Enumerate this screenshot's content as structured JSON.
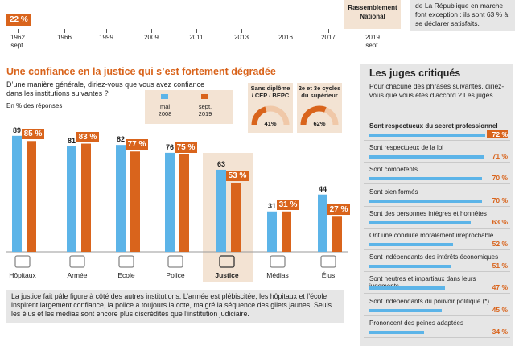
{
  "timeline": {
    "years": [
      "1962\nsept.",
      "1966",
      "1999",
      "2009",
      "2011",
      "2013",
      "2016",
      "2017",
      "2019\nsept."
    ],
    "first_value": "22 %",
    "rn_label": "Rassemblement\nNational",
    "note": "de La République en marche font exception : ils sont 63 % à se déclarer satisfaits."
  },
  "main": {
    "title": "Une confiance en la justice qui s’est fortement dégradée",
    "question": "D’une manière générale, diriez-vous que vous avez confiance dans les institutions suivantes ?",
    "unit_label": "En % des réponses",
    "legend": [
      {
        "label": "mai\n2008",
        "color": "#5cb4e8"
      },
      {
        "label": "sept.\n2019",
        "color": "#d9641c"
      }
    ],
    "gauges": [
      {
        "title": "Sans diplôme\n/ CEP / BEPC",
        "value": "41%",
        "pct": 41
      },
      {
        "title": "2e et 3e cycles\ndu supérieur",
        "value": "62%",
        "pct": 62
      }
    ],
    "note": "La justice fait pâle figure à côté des autres institutions. L’armée est plébiscitée, les hôpitaux et l’école inspirent largement confiance, la police a toujours la cote, malgré la séquence des gilets jaunes. Seuls les élus et les médias sont encore plus discrédités que l’institution judiciaire."
  },
  "chart_data": [
    {
      "type": "bar",
      "title": "Une confiance en la justice qui s’est fortement dégradée",
      "categories": [
        "Hôpitaux",
        "Armée",
        "Ecole",
        "Police",
        "Justice",
        "Médias",
        "Élus"
      ],
      "series": [
        {
          "name": "mai 2008",
          "values": [
            89,
            81,
            82,
            76,
            63,
            31,
            44
          ],
          "labels": [
            "89",
            "81",
            "82",
            "76",
            "63",
            "31",
            "44"
          ],
          "color": "#5cb4e8"
        },
        {
          "name": "sept. 2019",
          "values": [
            85,
            83,
            77,
            75,
            53,
            31,
            27
          ],
          "labels": [
            "85 %",
            "83 %",
            "77 %",
            "75 %",
            "53 %",
            "31 %",
            "27 %"
          ],
          "color": "#d9641c"
        }
      ],
      "ylim": [
        0,
        100
      ],
      "highlight": "Justice"
    },
    {
      "type": "bar",
      "title": "Les juges critiqués",
      "question": "Pour chacune des phrases suivantes, diriez-vous que vous êtes d’accord ? Les juges...",
      "categories": [
        "Sont respectueux du secret professionnel",
        "Sont respectueux de la loi",
        "Sont compétents",
        "Sont bien formés",
        "Sont des personnes intègres et honnêtes",
        "Ont une conduite moralement irréprochable",
        "Sont indépendants des intérêts économiques",
        "Sont neutres et impartiaux dans leurs jugements",
        "Sont indépendants du pouvoir politique (*)",
        "Prononcent des peines adaptées"
      ],
      "values": [
        72,
        71,
        70,
        70,
        63,
        52,
        51,
        47,
        45,
        34
      ],
      "labels": [
        "72 %",
        "71 %",
        "70 %",
        "70 %",
        "63 %",
        "52 %",
        "51 %",
        "47 %",
        "45 %",
        "34 %"
      ],
      "xlim": [
        0,
        100
      ]
    }
  ]
}
